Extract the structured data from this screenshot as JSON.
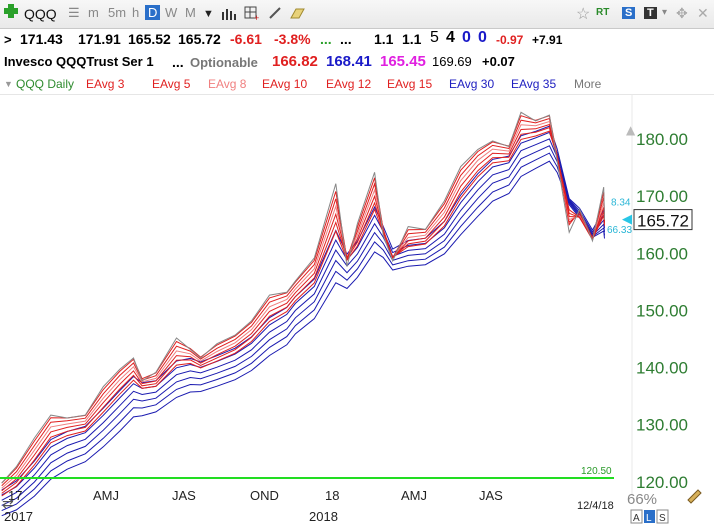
{
  "toolbar": {
    "symbol": "QQQ",
    "periods": [
      "m",
      "5m",
      "h",
      "D",
      "W",
      "M"
    ],
    "active_period": "D",
    "rt_label": "RT",
    "s_label": "S",
    "t_label": "T"
  },
  "quote": {
    "last": "171.43",
    "high": "171.91",
    "low": "165.52",
    "close": "165.72",
    "change": "-6.61",
    "change_pct": "-3.8%",
    "dots1": "...",
    "dots2": "...",
    "v1": "1.1",
    "v2": "1.1",
    "n1": "5",
    "n2": "4",
    "n3": "0",
    "n4": "0",
    "d1": "-0.97",
    "d2": "+7.91",
    "name": "Invesco QQQTrust Ser 1",
    "dots3": "...",
    "optionable": "Optionable",
    "p1": "166.82",
    "p2": "168.41",
    "p3": "165.45",
    "p4": "169.69",
    "p5": "+0.07"
  },
  "legend": [
    {
      "label": "QQQ Daily",
      "color": "#2e8b2e"
    },
    {
      "label": "EAvg 3",
      "color": "#e02020"
    },
    {
      "label": "EAvg 5",
      "color": "#e02020"
    },
    {
      "label": "EAvg 8",
      "color": "#f08080"
    },
    {
      "label": "EAvg 10",
      "color": "#e02020"
    },
    {
      "label": "EAvg 12",
      "color": "#e02020"
    },
    {
      "label": "EAvg 15",
      "color": "#e02020"
    },
    {
      "label": "EAvg 30",
      "color": "#2020c0"
    },
    {
      "label": "EAvg 35",
      "color": "#2020c0"
    },
    {
      "label": "More",
      "color": "#777777"
    }
  ],
  "chart_data": {
    "type": "line",
    "ylim": [
      117,
      187
    ],
    "y_ticks": [
      "180.00",
      "170.00",
      "160.00",
      "150.00",
      "140.00",
      "130.00",
      "120.00"
    ],
    "x_labels": [
      "17",
      "AMJ",
      "JAS",
      "OND",
      "18",
      "AMJ",
      "JAS"
    ],
    "x_sub_labels": [
      "2017",
      "2018"
    ],
    "date_label": "12/4/18",
    "zoom_label": "66%",
    "last_price_label": "165.72",
    "last_price": 165.72,
    "hline_label": "120.50",
    "hline_value": 120.5,
    "ema_label_upper": "8.34",
    "ema_label_lower": "66.33",
    "price_path": [
      [
        "2017-01-03",
        119.6
      ],
      [
        "2017-01-20",
        122.5
      ],
      [
        "2017-02-10",
        127.5
      ],
      [
        "2017-03-01",
        131.5
      ],
      [
        "2017-03-20",
        131.0
      ],
      [
        "2017-04-10",
        131.5
      ],
      [
        "2017-05-01",
        136.5
      ],
      [
        "2017-05-20",
        139.5
      ],
      [
        "2017-06-05",
        141.5
      ],
      [
        "2017-06-15",
        137.5
      ],
      [
        "2017-07-01",
        139.0
      ],
      [
        "2017-07-25",
        145.0
      ],
      [
        "2017-08-10",
        143.0
      ],
      [
        "2017-08-22",
        141.5
      ],
      [
        "2017-09-10",
        144.0
      ],
      [
        "2017-10-01",
        145.5
      ],
      [
        "2017-10-20",
        148.0
      ],
      [
        "2017-11-10",
        152.5
      ],
      [
        "2017-11-30",
        153.0
      ],
      [
        "2017-12-10",
        155.0
      ],
      [
        "2018-01-01",
        159.0
      ],
      [
        "2018-01-26",
        172.0
      ],
      [
        "2018-02-08",
        157.5
      ],
      [
        "2018-02-20",
        165.0
      ],
      [
        "2018-03-12",
        174.0
      ],
      [
        "2018-03-22",
        163.0
      ],
      [
        "2018-04-02",
        158.5
      ],
      [
        "2018-04-20",
        164.5
      ],
      [
        "2018-05-10",
        164.0
      ],
      [
        "2018-06-01",
        169.0
      ],
      [
        "2018-06-20",
        175.0
      ],
      [
        "2018-07-10",
        178.0
      ],
      [
        "2018-07-27",
        179.5
      ],
      [
        "2018-08-15",
        178.5
      ],
      [
        "2018-08-29",
        184.5
      ],
      [
        "2018-09-15",
        183.0
      ],
      [
        "2018-10-01",
        184.0
      ],
      [
        "2018-10-10",
        176.0
      ],
      [
        "2018-10-24",
        163.5
      ],
      [
        "2018-11-05",
        167.5
      ],
      [
        "2018-11-20",
        162.0
      ],
      [
        "2018-12-03",
        171.4
      ],
      [
        "2018-12-04",
        165.72
      ]
    ],
    "red_ema_bands": 6,
    "blue_ema_bands": 6
  }
}
